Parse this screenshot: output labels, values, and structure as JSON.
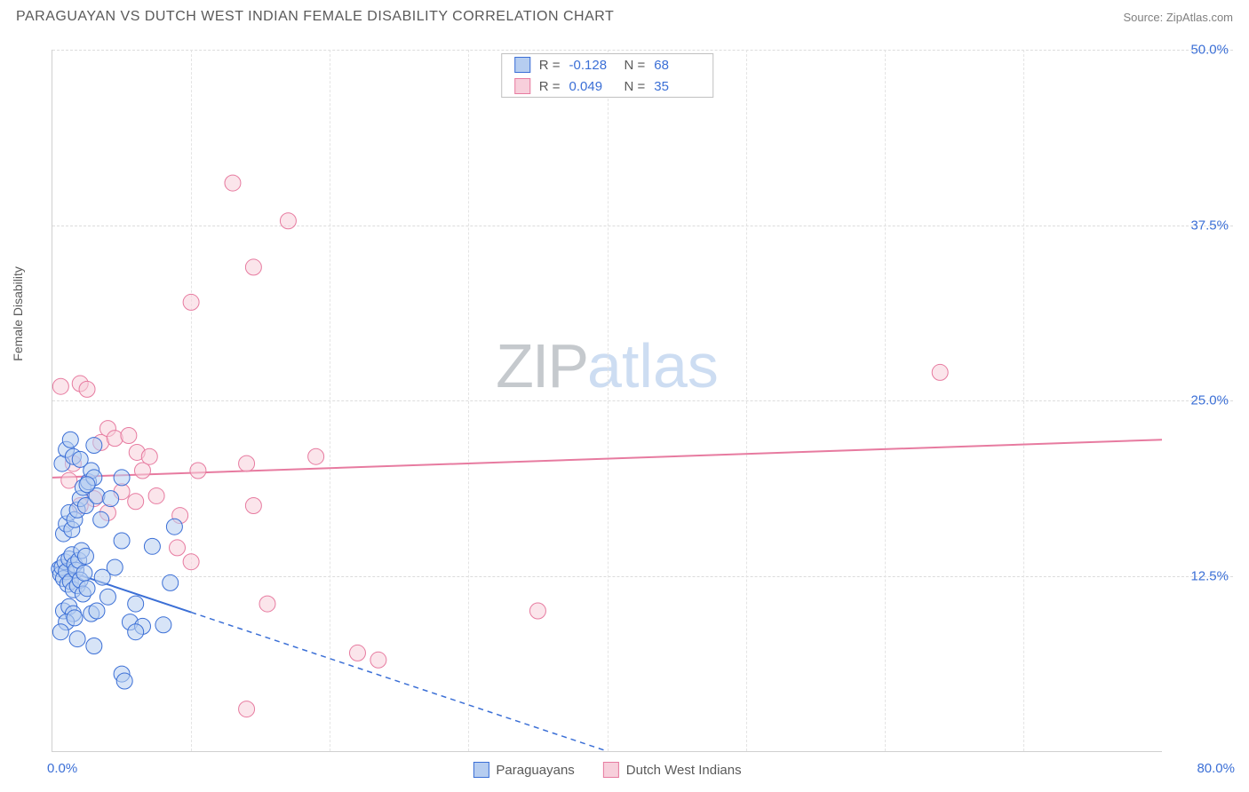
{
  "header": {
    "title": "PARAGUAYAN VS DUTCH WEST INDIAN FEMALE DISABILITY CORRELATION CHART",
    "source": "Source: ZipAtlas.com"
  },
  "y_axis": {
    "label": "Female Disability"
  },
  "colors": {
    "blue_stroke": "#3b6fd6",
    "blue_fill": "#b6cdf0",
    "pink_stroke": "#e77ba0",
    "pink_fill": "#f7cfdb",
    "grid": "#dcdcdc",
    "axis": "#d0d0d0",
    "text_gray": "#5a5a5a",
    "tick_blue": "#3b6fd6"
  },
  "chart": {
    "type": "scatter",
    "xlim": [
      0,
      80
    ],
    "ylim": [
      0,
      50
    ],
    "x_ticks": [
      0,
      80
    ],
    "x_tick_labels": [
      "0.0%",
      "80.0%"
    ],
    "y_ticks": [
      12.5,
      25.0,
      37.5,
      50.0
    ],
    "y_tick_labels": [
      "12.5%",
      "25.0%",
      "37.5%",
      "50.0%"
    ],
    "grid_v_positions": [
      0.125,
      0.25,
      0.375,
      0.5,
      0.625,
      0.75,
      0.875
    ],
    "marker_radius": 9,
    "marker_opacity": 0.55,
    "line_width": 2
  },
  "stats_legend": {
    "rows": [
      {
        "swatch_fill": "#b6cdf0",
        "swatch_stroke": "#3b6fd6",
        "r": "-0.128",
        "n": "68"
      },
      {
        "swatch_fill": "#f7cfdb",
        "swatch_stroke": "#e77ba0",
        "r": "0.049",
        "n": "35"
      }
    ],
    "r_label": "R =",
    "n_label": "N ="
  },
  "bottom_legend": {
    "items": [
      {
        "swatch_fill": "#b6cdf0",
        "swatch_stroke": "#3b6fd6",
        "label": "Paraguayans"
      },
      {
        "swatch_fill": "#f7cfdb",
        "swatch_stroke": "#e77ba0",
        "label": "Dutch West Indians"
      }
    ]
  },
  "watermark": {
    "part1": "ZIP",
    "part2": "atlas"
  },
  "series": {
    "blue": {
      "trend": {
        "x1": 0,
        "y1": 13.2,
        "x2": 40,
        "y2": 0,
        "dashed_from_x": 10
      },
      "points": [
        [
          0.5,
          13
        ],
        [
          0.6,
          12.6
        ],
        [
          0.7,
          13.1
        ],
        [
          0.8,
          12.3
        ],
        [
          0.9,
          13.5
        ],
        [
          1.0,
          12.8
        ],
        [
          1.1,
          11.9
        ],
        [
          1.2,
          13.7
        ],
        [
          1.3,
          12.1
        ],
        [
          1.4,
          14.0
        ],
        [
          1.5,
          11.5
        ],
        [
          1.6,
          13.3
        ],
        [
          1.7,
          12.9
        ],
        [
          1.8,
          11.8
        ],
        [
          1.9,
          13.6
        ],
        [
          2.0,
          12.2
        ],
        [
          2.1,
          14.3
        ],
        [
          2.2,
          11.2
        ],
        [
          2.3,
          12.7
        ],
        [
          2.4,
          13.9
        ],
        [
          2.5,
          11.6
        ],
        [
          0.8,
          10.0
        ],
        [
          1.2,
          10.3
        ],
        [
          1.5,
          9.8
        ],
        [
          1.0,
          9.2
        ],
        [
          1.6,
          9.5
        ],
        [
          2.8,
          9.8
        ],
        [
          3.2,
          10.0
        ],
        [
          3.6,
          12.4
        ],
        [
          4.0,
          11.0
        ],
        [
          4.5,
          13.1
        ],
        [
          5.0,
          15.0
        ],
        [
          5.6,
          9.2
        ],
        [
          6.0,
          10.5
        ],
        [
          6.5,
          8.9
        ],
        [
          7.2,
          14.6
        ],
        [
          8.0,
          9.0
        ],
        [
          8.5,
          12.0
        ],
        [
          8.8,
          16.0
        ],
        [
          0.8,
          15.5
        ],
        [
          1.0,
          16.2
        ],
        [
          1.2,
          17.0
        ],
        [
          1.4,
          15.8
        ],
        [
          1.6,
          16.5
        ],
        [
          1.8,
          17.2
        ],
        [
          2.0,
          18.0
        ],
        [
          2.2,
          18.8
        ],
        [
          2.4,
          17.5
        ],
        [
          2.6,
          19.2
        ],
        [
          2.8,
          20.0
        ],
        [
          3.0,
          19.5
        ],
        [
          3.2,
          18.2
        ],
        [
          0.7,
          20.5
        ],
        [
          1.0,
          21.5
        ],
        [
          1.3,
          22.2
        ],
        [
          1.5,
          21.0
        ],
        [
          2.0,
          20.8
        ],
        [
          2.5,
          19.0
        ],
        [
          3.0,
          21.8
        ],
        [
          3.5,
          16.5
        ],
        [
          4.2,
          18.0
        ],
        [
          5.0,
          19.5
        ],
        [
          0.6,
          8.5
        ],
        [
          1.8,
          8.0
        ],
        [
          3.0,
          7.5
        ],
        [
          5.0,
          5.5
        ],
        [
          5.2,
          5.0
        ],
        [
          6.0,
          8.5
        ]
      ]
    },
    "pink": {
      "trend": {
        "x1": 0,
        "y1": 19.5,
        "x2": 80,
        "y2": 22.2
      },
      "points": [
        [
          0.6,
          26.0
        ],
        [
          2.0,
          26.2
        ],
        [
          2.5,
          25.8
        ],
        [
          3.5,
          22.0
        ],
        [
          4.0,
          23.0
        ],
        [
          4.5,
          22.3
        ],
        [
          5.5,
          22.5
        ],
        [
          6.1,
          21.3
        ],
        [
          6.5,
          20.0
        ],
        [
          7.0,
          21.0
        ],
        [
          2.0,
          17.5
        ],
        [
          3.0,
          18.0
        ],
        [
          4.0,
          17.0
        ],
        [
          5.0,
          18.5
        ],
        [
          6.0,
          17.8
        ],
        [
          7.5,
          18.2
        ],
        [
          9.0,
          14.5
        ],
        [
          9.2,
          16.8
        ],
        [
          10.0,
          13.5
        ],
        [
          10.5,
          20.0
        ],
        [
          14.0,
          20.5
        ],
        [
          14.5,
          17.5
        ],
        [
          15.5,
          10.5
        ],
        [
          19.0,
          21.0
        ],
        [
          22.0,
          7.0
        ],
        [
          10.0,
          32.0
        ],
        [
          13.0,
          40.5
        ],
        [
          14.5,
          34.5
        ],
        [
          17.0,
          37.8
        ],
        [
          14.0,
          3.0
        ],
        [
          23.5,
          6.5
        ],
        [
          35.0,
          10.0
        ],
        [
          64.0,
          27.0
        ],
        [
          1.2,
          19.3
        ],
        [
          1.5,
          20.5
        ]
      ]
    }
  }
}
